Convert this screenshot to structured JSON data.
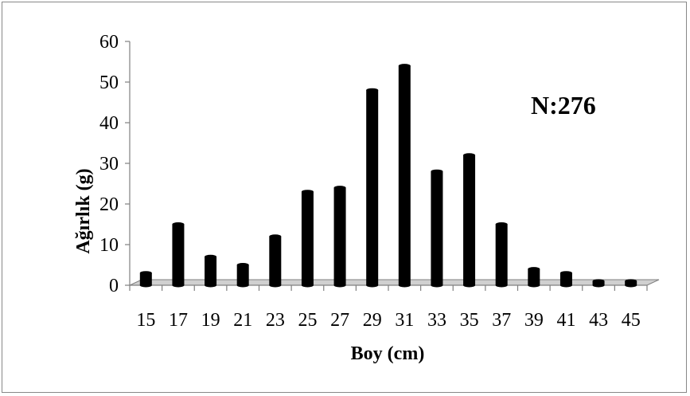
{
  "chart_data": {
    "type": "bar",
    "categories": [
      "15",
      "17",
      "19",
      "21",
      "23",
      "25",
      "27",
      "29",
      "31",
      "33",
      "35",
      "37",
      "39",
      "41",
      "43",
      "45"
    ],
    "values": [
      3,
      15,
      7,
      5,
      12,
      23,
      24,
      48,
      54,
      28,
      32,
      15,
      4,
      3,
      1,
      1
    ],
    "xlabel": "Boy (cm)",
    "ylabel": "Ağırlık (g)",
    "ylim": [
      0,
      60
    ],
    "yticks": [
      "0",
      "10",
      "20",
      "30",
      "40",
      "50",
      "60"
    ],
    "annotation": "N:276",
    "grid": false,
    "legend": "none",
    "bar_color": "#000000",
    "floor_color": "#d0d0d0"
  }
}
